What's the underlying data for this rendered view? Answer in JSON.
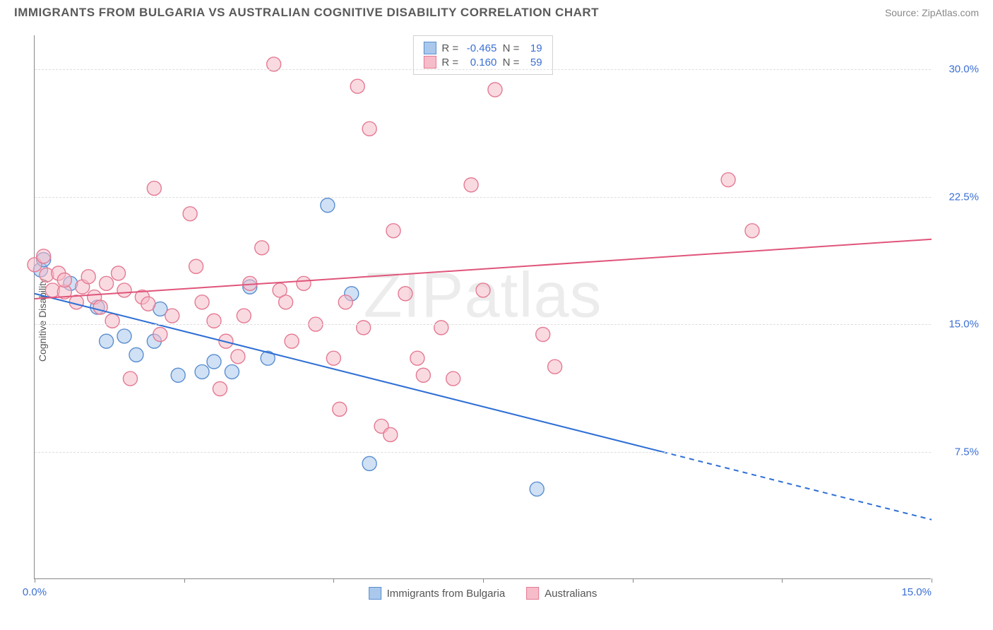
{
  "title": "IMMIGRANTS FROM BULGARIA VS AUSTRALIAN COGNITIVE DISABILITY CORRELATION CHART",
  "source_label": "Source:",
  "source_name": "ZipAtlas.com",
  "watermark": "ZIPatlas",
  "y_axis_label": "Cognitive Disability",
  "chart": {
    "type": "scatter",
    "xlim": [
      0,
      15
    ],
    "ylim": [
      0,
      32
    ],
    "x_ticks": [
      0,
      2.5,
      5,
      7.5,
      10,
      12.5,
      15
    ],
    "x_tick_labels": {
      "0": "0.0%",
      "15": "15.0%"
    },
    "y_ticks": [
      7.5,
      15.0,
      22.5,
      30.0
    ],
    "y_tick_labels": [
      "7.5%",
      "15.0%",
      "22.5%",
      "30.0%"
    ],
    "grid_color": "#dddddd",
    "axis_color": "#888888",
    "background_color": "#ffffff",
    "point_radius": 10,
    "point_opacity": 0.55,
    "series": [
      {
        "name": "Immigrants from Bulgaria",
        "color_fill": "#a9c8ec",
        "color_stroke": "#5b8fd0",
        "R": "-0.465",
        "N": "19",
        "trend": {
          "x1": 0,
          "y1": 16.8,
          "x2": 15,
          "y2": 3.5,
          "solid_until_x": 10.5,
          "color": "#2e6fd4",
          "width": 2
        },
        "points": [
          [
            0.1,
            18.2
          ],
          [
            0.6,
            17.4
          ],
          [
            1.2,
            14.0
          ],
          [
            1.5,
            14.3
          ],
          [
            1.7,
            13.2
          ],
          [
            2.0,
            14.0
          ],
          [
            2.1,
            15.9
          ],
          [
            2.8,
            12.2
          ],
          [
            3.0,
            12.8
          ],
          [
            3.3,
            12.2
          ],
          [
            3.6,
            17.2
          ],
          [
            4.9,
            22.0
          ],
          [
            5.3,
            16.8
          ],
          [
            5.6,
            6.8
          ],
          [
            8.4,
            5.3
          ],
          [
            0.15,
            18.8
          ],
          [
            1.05,
            16.0
          ],
          [
            3.9,
            13.0
          ],
          [
            2.4,
            12.0
          ]
        ]
      },
      {
        "name": "Australians",
        "color_fill": "#f6bcc9",
        "color_stroke": "#e47a93",
        "R": "0.160",
        "N": "59",
        "trend": {
          "x1": 0,
          "y1": 16.5,
          "x2": 15,
          "y2": 20.0,
          "solid_until_x": 15,
          "color": "#e0557a",
          "width": 2
        },
        "points": [
          [
            0.0,
            18.5
          ],
          [
            0.2,
            17.9
          ],
          [
            0.3,
            17.0
          ],
          [
            0.4,
            18.0
          ],
          [
            0.5,
            16.9
          ],
          [
            0.5,
            17.6
          ],
          [
            0.7,
            16.3
          ],
          [
            0.8,
            17.2
          ],
          [
            0.9,
            17.8
          ],
          [
            1.0,
            16.6
          ],
          [
            1.1,
            16.0
          ],
          [
            1.2,
            17.4
          ],
          [
            1.3,
            15.2
          ],
          [
            1.4,
            18.0
          ],
          [
            1.5,
            17.0
          ],
          [
            1.6,
            11.8
          ],
          [
            1.8,
            16.6
          ],
          [
            2.0,
            23.0
          ],
          [
            2.1,
            14.4
          ],
          [
            2.6,
            21.5
          ],
          [
            2.7,
            18.4
          ],
          [
            2.8,
            16.3
          ],
          [
            3.0,
            15.2
          ],
          [
            3.1,
            11.2
          ],
          [
            3.2,
            14.0
          ],
          [
            3.4,
            13.1
          ],
          [
            3.5,
            15.5
          ],
          [
            3.6,
            17.4
          ],
          [
            3.8,
            19.5
          ],
          [
            4.0,
            30.3
          ],
          [
            4.1,
            17.0
          ],
          [
            4.2,
            16.3
          ],
          [
            4.5,
            17.4
          ],
          [
            4.7,
            15.0
          ],
          [
            5.0,
            13.0
          ],
          [
            5.1,
            10.0
          ],
          [
            5.2,
            16.3
          ],
          [
            5.4,
            29.0
          ],
          [
            5.5,
            14.8
          ],
          [
            5.6,
            26.5
          ],
          [
            5.8,
            9.0
          ],
          [
            6.0,
            20.5
          ],
          [
            6.2,
            16.8
          ],
          [
            6.4,
            13.0
          ],
          [
            6.5,
            12.0
          ],
          [
            6.8,
            14.8
          ],
          [
            7.0,
            11.8
          ],
          [
            7.3,
            23.2
          ],
          [
            7.5,
            17.0
          ],
          [
            7.7,
            28.8
          ],
          [
            8.5,
            14.4
          ],
          [
            8.7,
            12.5
          ],
          [
            11.6,
            23.5
          ],
          [
            12.0,
            20.5
          ],
          [
            1.9,
            16.2
          ],
          [
            2.3,
            15.5
          ],
          [
            0.15,
            19.0
          ],
          [
            4.3,
            14.0
          ],
          [
            5.95,
            8.5
          ]
        ]
      }
    ]
  },
  "legend_bottom": [
    {
      "label": "Immigrants from Bulgaria",
      "fill": "#a9c8ec",
      "stroke": "#5b8fd0"
    },
    {
      "label": "Australians",
      "fill": "#f6bcc9",
      "stroke": "#e47a93"
    }
  ]
}
